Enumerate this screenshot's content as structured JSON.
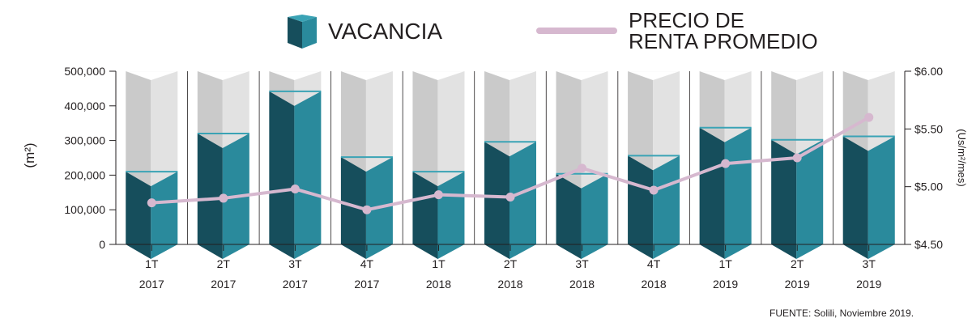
{
  "legend": {
    "vacancy_label": "VACANCIA",
    "rent_label_line1": "PRECIO DE",
    "rent_label_line2": "RENTA PROMEDIO"
  },
  "source": "FUENTE: Solili, Noviembre 2019.",
  "colors": {
    "bar_front": "#2a8a9c",
    "bar_side": "#164e5c",
    "bar_top": "#3aa3b5",
    "background_front": "#e2e2e2",
    "background_side": "#cacaca",
    "line": "#d6b8cf"
  },
  "chart_data": {
    "type": "bar",
    "categories": [
      [
        "1T",
        "2017"
      ],
      [
        "2T",
        "2017"
      ],
      [
        "3T",
        "2017"
      ],
      [
        "4T",
        "2017"
      ],
      [
        "1T",
        "2018"
      ],
      [
        "2T",
        "2018"
      ],
      [
        "3T",
        "2018"
      ],
      [
        "4T",
        "2018"
      ],
      [
        "1T",
        "2019"
      ],
      [
        "2T",
        "2019"
      ],
      [
        "3T",
        "2019"
      ]
    ],
    "series": [
      {
        "name": "VACANCIA",
        "type": "bar",
        "axis": "left",
        "values": [
          210000,
          320000,
          442000,
          252000,
          210000,
          296000,
          204000,
          256000,
          337000,
          302000,
          312000
        ]
      },
      {
        "name": "PRECIO DE RENTA PROMEDIO",
        "type": "line",
        "axis": "right",
        "values": [
          4.86,
          4.9,
          4.98,
          4.8,
          4.93,
          4.91,
          5.16,
          4.97,
          5.2,
          5.25,
          5.6
        ]
      }
    ],
    "ylabel": "(m²)",
    "ylabel_right": "(Us/m²/mes)",
    "ylim": [
      0,
      500000
    ],
    "ylim_right": [
      4.5,
      6.0
    ],
    "yticks": [
      "0",
      "100,000",
      "200,000",
      "300,000",
      "400,000",
      "500,000"
    ],
    "yticks_right": [
      "$4.50",
      "$5.00",
      "$5.50",
      "$6.00"
    ],
    "grid": false
  }
}
